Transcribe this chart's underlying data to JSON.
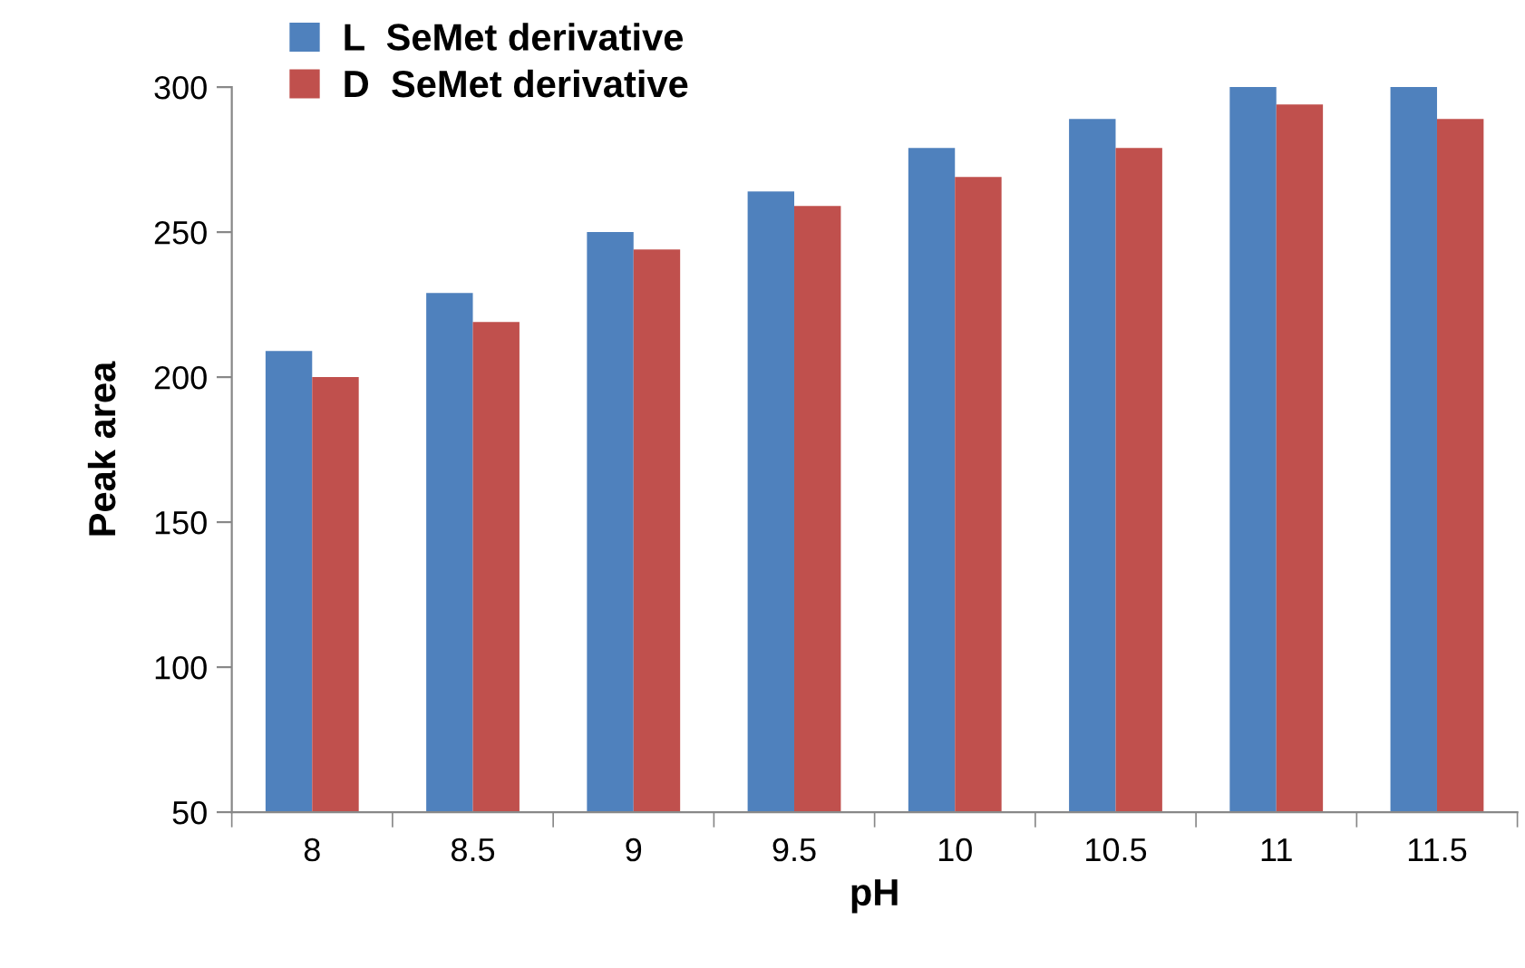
{
  "chart_data": {
    "type": "bar",
    "xlabel": "pH",
    "ylabel": "Peak area",
    "categories": [
      "8",
      "8.5",
      "9",
      "9.5",
      "10",
      "10.5",
      "11",
      "11.5"
    ],
    "series": [
      {
        "name": "L  SeMet derivative",
        "color": "#4f81bd",
        "values": [
          209,
          229,
          250,
          264,
          279,
          289,
          300,
          300
        ]
      },
      {
        "name": "D  SeMet derivative",
        "color": "#c0504d",
        "values": [
          200,
          219,
          244,
          259,
          269,
          279,
          294,
          289
        ]
      }
    ],
    "ylim": [
      50,
      300
    ],
    "yticks": [
      50,
      100,
      150,
      200,
      250,
      300
    ],
    "grid": false,
    "legend": "top left"
  }
}
